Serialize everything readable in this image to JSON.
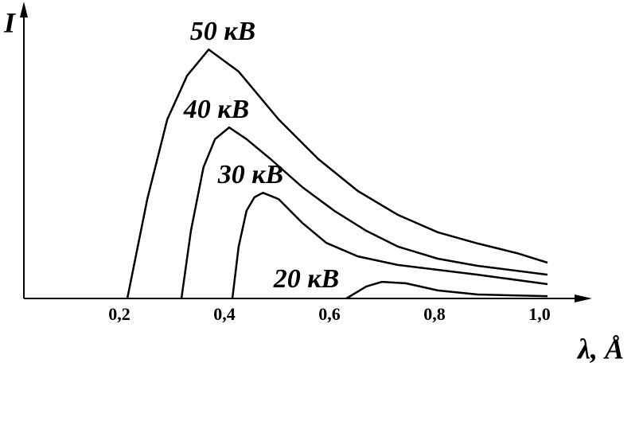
{
  "chart_data": {
    "type": "line",
    "y_label": "I",
    "x_label": "λ, Å",
    "xlim": [
      0,
      1.08
    ],
    "ylim": [
      0,
      100
    ],
    "xticks": [
      {
        "value": 0.2,
        "label": "0,2"
      },
      {
        "value": 0.4,
        "label": "0,4"
      },
      {
        "value": 0.6,
        "label": "0,6"
      },
      {
        "value": 0.8,
        "label": "0,8"
      },
      {
        "value": 1.0,
        "label": "1,0"
      }
    ],
    "series": [
      {
        "name": "50 кВ",
        "color": "#000000",
        "x": [
          0.2,
          0.238,
          0.276,
          0.314,
          0.355,
          0.412,
          0.488,
          0.564,
          0.639,
          0.715,
          0.791,
          0.867,
          0.942,
          1.0
        ],
        "values": [
          0,
          34.7,
          62.5,
          77.8,
          86.9,
          79.2,
          62.5,
          48.6,
          37.5,
          29.2,
          23.1,
          19.2,
          15.8,
          12.5
        ]
      },
      {
        "name": "40 кВ",
        "color": "#000000",
        "x": [
          0.303,
          0.321,
          0.345,
          0.367,
          0.394,
          0.427,
          0.473,
          0.533,
          0.594,
          0.655,
          0.715,
          0.791,
          0.867,
          1.0
        ],
        "values": [
          0,
          23.6,
          45.8,
          55.6,
          59.7,
          55.6,
          48.6,
          38.9,
          30.6,
          23.6,
          18.1,
          13.9,
          11.4,
          8.3
        ]
      },
      {
        "name": "30 кВ",
        "color": "#000000",
        "x": [
          0.4,
          0.412,
          0.427,
          0.442,
          0.458,
          0.488,
          0.533,
          0.579,
          0.639,
          0.715,
          0.867,
          1.0
        ],
        "values": [
          0,
          18.1,
          30.6,
          35.3,
          36.9,
          34.7,
          26.4,
          19.4,
          14.7,
          11.7,
          8.3,
          5.0
        ]
      },
      {
        "name": "20 кВ",
        "color": "#000000",
        "x": [
          0.617,
          0.655,
          0.685,
          0.73,
          0.791,
          0.867,
          1.0
        ],
        "values": [
          0,
          4.2,
          5.8,
          5.3,
          2.8,
          1.4,
          0.8
        ]
      }
    ]
  }
}
